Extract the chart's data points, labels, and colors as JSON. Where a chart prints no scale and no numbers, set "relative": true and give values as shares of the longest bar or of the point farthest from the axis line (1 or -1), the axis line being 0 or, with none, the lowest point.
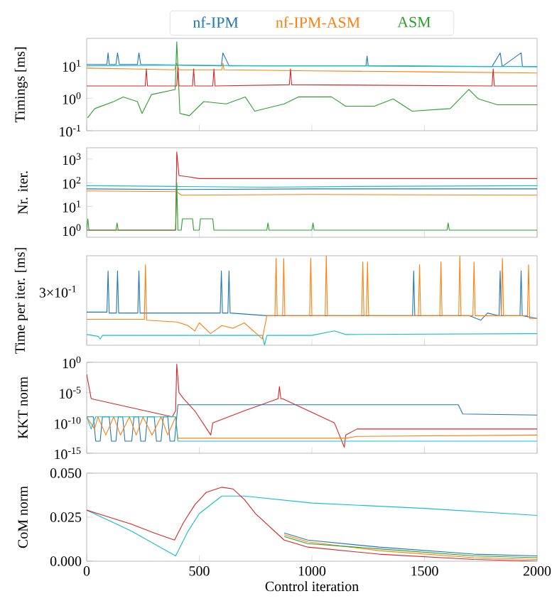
{
  "chart_data": [
    {
      "type": "line",
      "ylabel": "Timings [ms]",
      "log": "y",
      "legend": "top",
      "tick_labels": "y",
      "xlim": [
        0,
        2000
      ],
      "xticks": [
        0,
        500,
        1000,
        1500,
        2000
      ],
      "ylim": [
        0.1,
        70
      ],
      "yticks": [
        {
          "value": 10,
          "label": "10$^{1}$"
        },
        {
          "value": 1,
          "label": "10$^{0}$"
        },
        {
          "value": 0.1,
          "label": "10$^{-1}$"
        }
      ],
      "series": [
        {
          "name": "nf-IPM",
          "color": "#1f77b4",
          "x": [
            0,
            90,
            95,
            100,
            130,
            137,
            145,
            225,
            232,
            240,
            400,
            598,
            605,
            632,
            640,
            900,
            1240,
            1245,
            1250,
            1800,
            1836,
            1845,
            1929,
            1935,
            2000
          ],
          "values": [
            11,
            11,
            25,
            11,
            11,
            25,
            11,
            11,
            25,
            11,
            10.5,
            10,
            25,
            10,
            10,
            10,
            10,
            20,
            10,
            9.5,
            25,
            9.5,
            25,
            9.5,
            9.3
          ]
        },
        {
          "name": "nf-IPM-ASM",
          "color": "#ff7f0e",
          "x": [
            0,
            200,
            390,
            400,
            410,
            600,
            605,
            610,
            1000,
            1500,
            2000
          ],
          "values": [
            8.5,
            8,
            7.5,
            12,
            7.5,
            7.5,
            12,
            7.5,
            7,
            6.5,
            6
          ]
        },
        {
          "name": "ASM",
          "color": "#2ca02c",
          "x": [
            4,
            36,
            120,
            162,
            225,
            246,
            288,
            393,
            400,
            414,
            456,
            520,
            620,
            704,
            746,
            877,
            940,
            1087,
            1150,
            1277,
            1361,
            1445,
            1614,
            1697,
            1740,
            1824,
            2000
          ],
          "values": [
            0.25,
            0.48,
            0.79,
            1.1,
            0.79,
            0.34,
            1.3,
            1.86,
            55,
            0.34,
            0.29,
            0.79,
            0.67,
            1.1,
            0.4,
            0.67,
            1.1,
            1.1,
            0.57,
            0.57,
            0.95,
            0.4,
            0.48,
            1.86,
            0.95,
            0.63,
            0.63
          ]
        },
        {
          "color": "#d62728",
          "x": [
            0,
            260,
            265,
            270,
            400,
            405,
            410,
            470,
            475,
            480,
            560,
            565,
            570,
            900,
            905,
            910,
            1800,
            1805,
            1810,
            2000
          ],
          "values": [
            2.4,
            2.4,
            8,
            2.4,
            2.4,
            9,
            2.4,
            2.4,
            8,
            2.4,
            2.4,
            8,
            2.4,
            2.6,
            8,
            2.6,
            2.4,
            8,
            2.4,
            2.4
          ]
        },
        {
          "color": "#17becf",
          "x": [
            0,
            400,
            800,
            1200,
            1600,
            2000
          ],
          "values": [
            10,
            10.5,
            10,
            10,
            9.5,
            9.5
          ]
        }
      ]
    },
    {
      "type": "line",
      "ylabel": "Nr. iter.",
      "log": "y",
      "tick_labels": "y",
      "xlim": [
        0,
        2000
      ],
      "xticks": [
        0,
        500,
        1000,
        1500,
        2000
      ],
      "ylim": [
        0.5,
        3000
      ],
      "yticks": [
        {
          "value": 1000,
          "label": "10$^{3}$"
        },
        {
          "value": 100,
          "label": "10$^{2}$"
        },
        {
          "value": 10,
          "label": "10$^{1}$"
        },
        {
          "value": 1,
          "label": "10$^{0}$"
        }
      ],
      "series": [
        {
          "color": "#d62728",
          "x": [
            0,
            395,
            400,
            410,
            450,
            500,
            2000
          ],
          "values": [
            1,
            1,
            2000,
            200,
            180,
            150,
            150
          ]
        },
        {
          "color": "#17becf",
          "x": [
            0,
            400,
            800,
            1200,
            2000
          ],
          "values": [
            75,
            70,
            65,
            70,
            75
          ]
        },
        {
          "color": "#1f77b4",
          "x": [
            0,
            400,
            1000,
            2000
          ],
          "values": [
            55,
            52,
            55,
            55
          ]
        },
        {
          "color": "#ff7f0e",
          "x": [
            0,
            400,
            420,
            1000,
            2000
          ],
          "values": [
            45,
            42,
            30,
            32,
            30
          ]
        },
        {
          "color": "#2ca02c",
          "x": [
            0,
            5,
            10,
            130,
            135,
            140,
            395,
            400,
            405,
            420,
            425,
            470,
            475,
            500,
            505,
            560,
            565,
            800,
            805,
            810,
            1000,
            1005,
            1010,
            1600,
            1605,
            1610,
            2000
          ],
          "values": [
            1,
            3,
            1,
            1,
            2,
            1,
            1,
            100,
            1,
            1,
            3,
            3,
            1,
            1,
            3,
            3,
            1,
            1,
            2,
            1,
            1,
            2,
            1,
            1,
            2,
            1,
            1
          ]
        }
      ]
    },
    {
      "type": "line",
      "ylabel": "Time per iter. [ms]",
      "relative": true,
      "annotations": [
        "3×10$^{-1}$"
      ],
      "tick_labels": false,
      "xlim": [
        0,
        2000
      ],
      "xticks": [
        0,
        500,
        1000,
        1500,
        2000
      ],
      "series": [
        {
          "color": "#17becf",
          "x": [
            0,
            50,
            60,
            70,
            400,
            780,
            790,
            800,
            1000,
            1100,
            1150,
            2000
          ],
          "values": [
            0.12,
            0.1,
            0.07,
            0.11,
            0.11,
            0.11,
            0,
            0.11,
            0.11,
            0.16,
            0.12,
            0.13
          ]
        },
        {
          "color": "#1f77b4",
          "x": [
            0,
            90,
            95,
            100,
            132,
            137,
            142,
            227,
            232,
            237,
            593,
            598,
            603,
            627,
            632,
            637,
            800,
            1447,
            1452,
            1457,
            1700,
            1750,
            1780,
            1831,
            1836,
            1841,
            1924,
            1929,
            1934,
            2000
          ],
          "values": [
            0.37,
            0.37,
            0.83,
            0.36,
            0.36,
            0.83,
            0.36,
            0.36,
            0.83,
            0.36,
            0.36,
            0.83,
            0.36,
            0.36,
            0.83,
            0.36,
            0.33,
            0.33,
            0.83,
            0.33,
            0.33,
            0.28,
            0.36,
            0.33,
            0.83,
            0.33,
            0.33,
            0.83,
            0.33,
            0.3
          ]
        },
        {
          "color": "#ff7f0e",
          "x": [
            0,
            256,
            261,
            266,
            400,
            450,
            480,
            500,
            550,
            600,
            650,
            700,
            780,
            800,
            836,
            841,
            846,
            870,
            875,
            880,
            990,
            995,
            1000,
            1059,
            1064,
            1069,
            1221,
            1226,
            1231,
            1242,
            1247,
            1252,
            1473,
            1478,
            1483,
            1568,
            1573,
            1578,
            1652,
            1657,
            1662,
            1715,
            1720,
            1725,
            1841,
            1846,
            1851,
            1957,
            1962,
            1967,
            2000
          ],
          "values": [
            0.29,
            0.29,
            0.9,
            0.28,
            0.26,
            0.22,
            0.16,
            0.25,
            0.13,
            0.22,
            0.19,
            0.25,
            0.07,
            0.33,
            0.33,
            0.97,
            0.33,
            0.33,
            0.97,
            0.33,
            0.33,
            0.97,
            0.33,
            0.33,
            1,
            0.33,
            0.33,
            0.93,
            0.33,
            0.33,
            0.93,
            0.33,
            0.33,
            0.9,
            0.33,
            0.33,
            0.93,
            0.33,
            0.33,
            1,
            0.33,
            0.33,
            0.93,
            0.33,
            0.33,
            0.97,
            0.33,
            0.33,
            0.9,
            0.3,
            0.3
          ]
        }
      ]
    },
    {
      "type": "line",
      "ylabel": "KKT norm",
      "log": "y",
      "tick_labels": "y",
      "xlim": [
        0,
        2000
      ],
      "xticks": [
        0,
        500,
        1000,
        1500,
        2000
      ],
      "ylim": [
        1e-15,
        1
      ],
      "yticks": [
        {
          "value": 1,
          "label": "10$^{0}$"
        },
        {
          "value": 1e-05,
          "label": "10$^{-5}$"
        },
        {
          "value": 1e-10,
          "label": "10$^{-10}$"
        },
        {
          "value": 1e-15,
          "label": "10$^{-15}$"
        }
      ],
      "series": [
        {
          "color": "#d62728",
          "x": [
            0,
            20,
            380,
            395,
            400,
            410,
            430,
            480,
            551,
            560,
            700,
            850,
            856,
            862,
            870,
            1100,
            1144,
            1150,
            1200,
            2000
          ],
          "values": [
            0.01,
            1e-06,
            1e-09,
            1e-08,
            0.5,
            1e-05,
            1e-06,
            1e-08,
            1e-12,
            1e-10,
            1e-08,
            1e-06,
            0.0001,
            1e-06,
            1e-06,
            1e-10,
            1e-14,
            1e-12,
            1e-11,
            1e-11
          ]
        },
        {
          "color": "#1f77b4",
          "x": [
            0,
            30,
            40,
            60,
            70,
            100,
            110,
            130,
            140,
            160,
            170,
            200,
            210,
            230,
            240,
            260,
            270,
            300,
            310,
            330,
            340,
            360,
            370,
            390,
            405,
            1000,
            1650,
            1670,
            2000
          ],
          "values": [
            1e-09,
            1e-09,
            1e-13,
            1e-13,
            1e-09,
            1e-09,
            1e-13,
            1e-13,
            1e-09,
            1e-09,
            1e-13,
            1e-13,
            1e-09,
            1e-09,
            1e-13,
            1e-13,
            1e-09,
            1e-09,
            1e-13,
            1e-13,
            1e-09,
            1e-09,
            1e-13,
            1e-13,
            1e-07,
            1e-07,
            1e-07,
            3e-09,
            2e-09
          ]
        },
        {
          "color": "#ff7f0e",
          "x": [
            0,
            35,
            50,
            85,
            120,
            150,
            190,
            220,
            250,
            290,
            330,
            360,
            395,
            405,
            1150,
            1200,
            2000
          ],
          "values": [
            1e-09,
            1e-11,
            1e-09,
            1e-12,
            1e-09,
            1e-12,
            1e-09,
            1e-12,
            1e-09,
            1e-12,
            1e-09,
            1e-12,
            1e-09,
            3e-13,
            3e-13,
            6e-13,
            1e-12
          ]
        },
        {
          "color": "#17becf",
          "x": [
            0,
            20,
            40,
            395,
            405,
            2000
          ],
          "values": [
            1e-09,
            1e-11,
            1e-09,
            1e-09,
            1e-13,
            1e-13
          ]
        }
      ]
    },
    {
      "type": "line",
      "ylabel": "CoM norm",
      "xlabel": "Control iteration",
      "xlim": [
        0,
        2000
      ],
      "xticks": [
        0,
        500,
        1000,
        1500,
        2000
      ],
      "ylim": [
        0,
        0.05
      ],
      "yticks": [
        {
          "value": 0,
          "label": "0.000"
        },
        {
          "value": 0.025,
          "label": "0.025"
        },
        {
          "value": 0.05,
          "label": "0.050"
        }
      ],
      "series": [
        {
          "color": "#17becf",
          "x": [
            0,
            200,
            395,
            450,
            500,
            600,
            700,
            1000,
            1500,
            2000
          ],
          "values": [
            0.029,
            0.017,
            0.003,
            0.017,
            0.027,
            0.037,
            0.037,
            0.033,
            0.03,
            0.026
          ]
        },
        {
          "color": "#1f77b4",
          "x": [
            877,
            982,
            1298,
            1719,
            2000
          ],
          "values": [
            0.016,
            0.012,
            0.008,
            0.004,
            0.003
          ]
        },
        {
          "color": "#ff7f0e",
          "x": [
            877,
            982,
            1298,
            1719,
            2000
          ],
          "values": [
            0.015,
            0.011,
            0.006,
            0.002,
            0.001
          ]
        },
        {
          "color": "#2ca02c",
          "x": [
            877,
            982,
            1298,
            1719,
            2000
          ],
          "values": [
            0.014,
            0.01,
            0.007,
            0.003,
            0.002
          ]
        },
        {
          "color": "#d62728",
          "x": [
            0,
            100,
            200,
            300,
            390,
            430,
            480,
            530,
            600,
            650,
            700,
            750,
            877,
            982,
            1298,
            1719,
            2000
          ],
          "values": [
            0.029,
            0.025,
            0.021,
            0.016,
            0.012,
            0.022,
            0.032,
            0.039,
            0.042,
            0.041,
            0.035,
            0.027,
            0.012,
            0.008,
            0.004,
            0.001,
            0
          ]
        }
      ]
    }
  ]
}
